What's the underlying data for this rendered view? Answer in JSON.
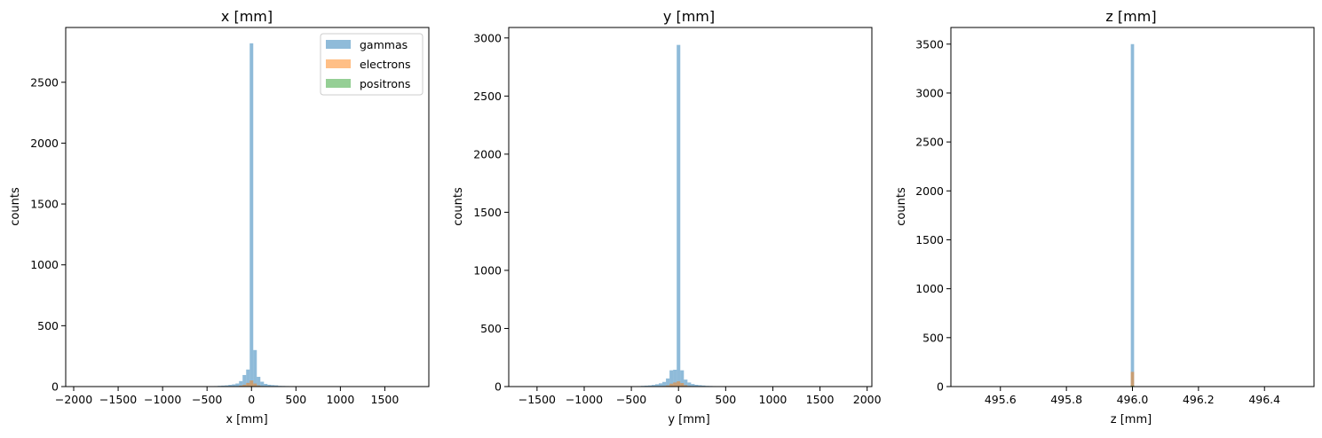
{
  "colors": {
    "gammas": "#1f77b4",
    "electrons": "#ff7f0e",
    "positrons": "#2ca02c",
    "bar_opacity": 0.5
  },
  "chart_data": [
    {
      "type": "histogram",
      "title": "x [mm]",
      "xlabel": "x [mm]",
      "ylabel": "counts",
      "xlim": [
        -2090,
        1995
      ],
      "ylim": [
        0,
        2950
      ],
      "xticks": [
        -2000,
        -1500,
        -1000,
        -500,
        0,
        500,
        1000,
        1500
      ],
      "yticks": [
        0,
        500,
        1000,
        1500,
        2000,
        2500
      ],
      "grid": false,
      "legend": "upper right",
      "legend_entries": [
        "gammas",
        "electrons",
        "positrons"
      ],
      "series": [
        {
          "name": "gammas",
          "bin_width": 40,
          "x": [
            -480,
            -440,
            -400,
            -360,
            -320,
            -280,
            -240,
            -200,
            -160,
            -120,
            -80,
            -40,
            0,
            40,
            80,
            120,
            160,
            200,
            240,
            280,
            320,
            360,
            400,
            440,
            480
          ],
          "values": [
            2,
            3,
            4,
            6,
            8,
            10,
            14,
            18,
            25,
            45,
            95,
            140,
            2820,
            300,
            80,
            40,
            22,
            15,
            12,
            10,
            6,
            5,
            4,
            3,
            2
          ]
        },
        {
          "name": "electrons",
          "bin_width": 40,
          "x": [
            -160,
            -120,
            -80,
            -40,
            0,
            40,
            80,
            120
          ],
          "values": [
            3,
            8,
            15,
            30,
            50,
            25,
            10,
            4
          ]
        },
        {
          "name": "positrons",
          "bin_width": 40,
          "x": [
            -40,
            0,
            40
          ],
          "values": [
            2,
            4,
            2
          ]
        }
      ]
    },
    {
      "type": "histogram",
      "title": "y [mm]",
      "xlabel": "y [mm]",
      "ylabel": "counts",
      "xlim": [
        -1800,
        2050
      ],
      "ylim": [
        0,
        3090
      ],
      "xticks": [
        -1500,
        -1000,
        -500,
        0,
        500,
        1000,
        1500,
        2000
      ],
      "yticks": [
        0,
        500,
        1000,
        1500,
        2000,
        2500,
        3000
      ],
      "grid": false,
      "series": [
        {
          "name": "gammas",
          "bin_width": 38,
          "x": [
            -456,
            -418,
            -380,
            -342,
            -304,
            -266,
            -228,
            -190,
            -152,
            -114,
            -76,
            -38,
            0,
            38,
            76,
            114,
            152,
            190,
            228,
            266,
            304,
            342,
            380,
            418
          ],
          "values": [
            3,
            4,
            6,
            8,
            10,
            14,
            20,
            28,
            40,
            70,
            140,
            145,
            2940,
            140,
            60,
            35,
            22,
            15,
            12,
            9,
            6,
            5,
            4,
            3
          ]
        },
        {
          "name": "electrons",
          "bin_width": 38,
          "x": [
            -152,
            -114,
            -76,
            -38,
            0,
            38,
            76,
            114
          ],
          "values": [
            5,
            10,
            25,
            35,
            45,
            30,
            12,
            5
          ]
        },
        {
          "name": "positrons",
          "bin_width": 38,
          "x": [
            -38,
            0,
            38
          ],
          "values": [
            2,
            4,
            2
          ]
        }
      ]
    },
    {
      "type": "histogram",
      "title": "z [mm]",
      "xlabel": "z [mm]",
      "ylabel": "counts",
      "xlim": [
        495.45,
        496.55
      ],
      "ylim": [
        0,
        3670
      ],
      "xticks": [
        495.6,
        495.8,
        496.0,
        496.2,
        496.4
      ],
      "yticks": [
        0,
        500,
        1000,
        1500,
        2000,
        2500,
        3000,
        3500
      ],
      "grid": false,
      "series": [
        {
          "name": "gammas",
          "bin_width": 0.01,
          "x": [
            496.0
          ],
          "values": [
            3500
          ]
        },
        {
          "name": "electrons",
          "bin_width": 0.01,
          "x": [
            496.0
          ],
          "values": [
            150
          ]
        },
        {
          "name": "positrons",
          "bin_width": 0.01,
          "x": [
            496.0
          ],
          "values": [
            8
          ]
        }
      ]
    }
  ]
}
